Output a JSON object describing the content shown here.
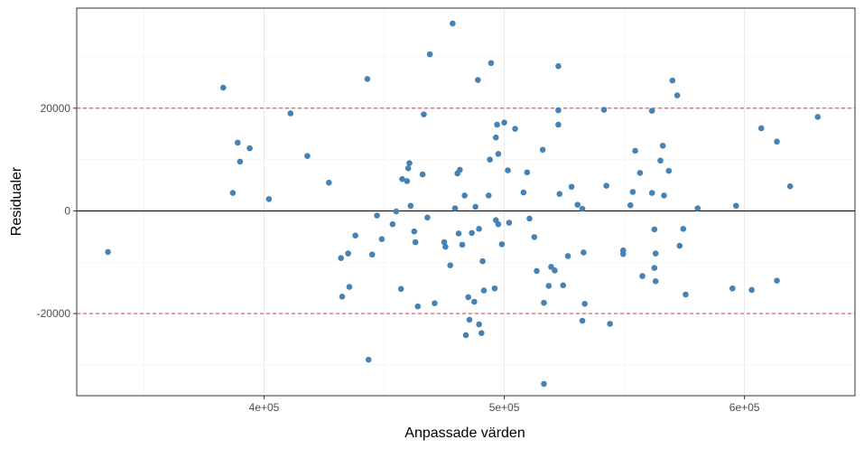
{
  "chart_data": {
    "type": "scatter",
    "title": "",
    "xlabel": "Anpassade värden",
    "ylabel": "Residualer",
    "xlim": [
      322000,
      646000
    ],
    "ylim": [
      -36000,
      39500
    ],
    "x_ticks": [
      400000,
      500000,
      600000
    ],
    "x_tick_labels": [
      "4e+05",
      "5e+05",
      "6e+05"
    ],
    "y_ticks": [
      -20000,
      0,
      20000
    ],
    "y_tick_labels": [
      "-20000",
      "0",
      "20000"
    ],
    "x_minor_gridlines": [
      350000,
      450000,
      550000
    ],
    "y_minor_gridlines": [
      -30000,
      -10000,
      10000,
      30000
    ],
    "grid": true,
    "legend": "none",
    "reference_lines": [
      {
        "y": 0,
        "style": "solid",
        "color": "#000000"
      },
      {
        "y": 20000,
        "style": "dashed",
        "color": "#e0191f"
      },
      {
        "y": -20000,
        "style": "dashed",
        "color": "#e0191f"
      }
    ],
    "point_color": "#4682b4",
    "points": [
      {
        "x": 335000,
        "y": -8000
      },
      {
        "x": 383000,
        "y": 24000
      },
      {
        "x": 387000,
        "y": 3500
      },
      {
        "x": 389000,
        "y": 13300
      },
      {
        "x": 390000,
        "y": 9600
      },
      {
        "x": 394000,
        "y": 12200
      },
      {
        "x": 402000,
        "y": 2300
      },
      {
        "x": 411000,
        "y": 19000
      },
      {
        "x": 418000,
        "y": 10700
      },
      {
        "x": 427000,
        "y": 5500
      },
      {
        "x": 432000,
        "y": -9200
      },
      {
        "x": 432500,
        "y": -16700
      },
      {
        "x": 435000,
        "y": -8300
      },
      {
        "x": 435500,
        "y": -14800
      },
      {
        "x": 438000,
        "y": -4800
      },
      {
        "x": 443000,
        "y": 25700
      },
      {
        "x": 443500,
        "y": -29000
      },
      {
        "x": 445000,
        "y": -8500
      },
      {
        "x": 447000,
        "y": -900
      },
      {
        "x": 449000,
        "y": -5500
      },
      {
        "x": 453500,
        "y": -2600
      },
      {
        "x": 455000,
        "y": -100
      },
      {
        "x": 457000,
        "y": -15200
      },
      {
        "x": 457500,
        "y": 6200
      },
      {
        "x": 459500,
        "y": 5800
      },
      {
        "x": 460000,
        "y": 8300
      },
      {
        "x": 460500,
        "y": 9300
      },
      {
        "x": 461000,
        "y": 1000
      },
      {
        "x": 462500,
        "y": -4000
      },
      {
        "x": 463000,
        "y": -6100
      },
      {
        "x": 464000,
        "y": -18600
      },
      {
        "x": 466000,
        "y": 7100
      },
      {
        "x": 466500,
        "y": 18800
      },
      {
        "x": 468000,
        "y": -1300
      },
      {
        "x": 469000,
        "y": 30500
      },
      {
        "x": 471000,
        "y": -18000
      },
      {
        "x": 475000,
        "y": -6100
      },
      {
        "x": 475500,
        "y": -7000
      },
      {
        "x": 477500,
        "y": -10600
      },
      {
        "x": 478500,
        "y": 36500
      },
      {
        "x": 479500,
        "y": 500
      },
      {
        "x": 480500,
        "y": 7300
      },
      {
        "x": 481500,
        "y": 8000
      },
      {
        "x": 481000,
        "y": -4400
      },
      {
        "x": 482500,
        "y": -6600
      },
      {
        "x": 483500,
        "y": 3000
      },
      {
        "x": 484000,
        "y": -24200
      },
      {
        "x": 485000,
        "y": -16800
      },
      {
        "x": 485500,
        "y": -21200
      },
      {
        "x": 486500,
        "y": -4300
      },
      {
        "x": 487500,
        "y": -17700
      },
      {
        "x": 488000,
        "y": 800
      },
      {
        "x": 489000,
        "y": 25500
      },
      {
        "x": 489500,
        "y": -3500
      },
      {
        "x": 489500,
        "y": -22100
      },
      {
        "x": 490500,
        "y": -23800
      },
      {
        "x": 491000,
        "y": -9800
      },
      {
        "x": 491500,
        "y": -15500
      },
      {
        "x": 493500,
        "y": 3000
      },
      {
        "x": 494000,
        "y": 10000
      },
      {
        "x": 494500,
        "y": 28800
      },
      {
        "x": 496000,
        "y": -15100
      },
      {
        "x": 496500,
        "y": 14300
      },
      {
        "x": 497000,
        "y": 16800
      },
      {
        "x": 497500,
        "y": 11100
      },
      {
        "x": 496500,
        "y": -1800
      },
      {
        "x": 497500,
        "y": -2600
      },
      {
        "x": 499000,
        "y": -6500
      },
      {
        "x": 500000,
        "y": 17200
      },
      {
        "x": 501500,
        "y": 7900
      },
      {
        "x": 502000,
        "y": -2300
      },
      {
        "x": 504500,
        "y": 16000
      },
      {
        "x": 508000,
        "y": 3600
      },
      {
        "x": 509500,
        "y": 7500
      },
      {
        "x": 510500,
        "y": -1500
      },
      {
        "x": 512500,
        "y": -5100
      },
      {
        "x": 513500,
        "y": -11700
      },
      {
        "x": 516000,
        "y": 11900
      },
      {
        "x": 516500,
        "y": -17900
      },
      {
        "x": 516500,
        "y": -33700
      },
      {
        "x": 518500,
        "y": -14600
      },
      {
        "x": 519500,
        "y": -10900
      },
      {
        "x": 521000,
        "y": -11600
      },
      {
        "x": 522500,
        "y": 28200
      },
      {
        "x": 522500,
        "y": 19600
      },
      {
        "x": 522500,
        "y": 16800
      },
      {
        "x": 523000,
        "y": 3300
      },
      {
        "x": 524500,
        "y": -14500
      },
      {
        "x": 526500,
        "y": -8800
      },
      {
        "x": 528000,
        "y": 4700
      },
      {
        "x": 530500,
        "y": 1200
      },
      {
        "x": 532500,
        "y": 400
      },
      {
        "x": 532500,
        "y": -21400
      },
      {
        "x": 533000,
        "y": -8100
      },
      {
        "x": 533500,
        "y": -18100
      },
      {
        "x": 541500,
        "y": 19700
      },
      {
        "x": 542500,
        "y": 4900
      },
      {
        "x": 544000,
        "y": -22000
      },
      {
        "x": 549500,
        "y": -8400
      },
      {
        "x": 549500,
        "y": -7700
      },
      {
        "x": 552500,
        "y": 1100
      },
      {
        "x": 553500,
        "y": 3700
      },
      {
        "x": 554500,
        "y": 11700
      },
      {
        "x": 556500,
        "y": 7400
      },
      {
        "x": 557500,
        "y": -12700
      },
      {
        "x": 561500,
        "y": 3500
      },
      {
        "x": 561500,
        "y": 19500
      },
      {
        "x": 562500,
        "y": -3600
      },
      {
        "x": 562500,
        "y": -11100
      },
      {
        "x": 563000,
        "y": -8300
      },
      {
        "x": 563000,
        "y": -13700
      },
      {
        "x": 565000,
        "y": 9800
      },
      {
        "x": 566000,
        "y": 12700
      },
      {
        "x": 566500,
        "y": 3000
      },
      {
        "x": 568500,
        "y": 7800
      },
      {
        "x": 570000,
        "y": 25400
      },
      {
        "x": 572000,
        "y": 22500
      },
      {
        "x": 573000,
        "y": -6800
      },
      {
        "x": 574500,
        "y": -3500
      },
      {
        "x": 575500,
        "y": -16300
      },
      {
        "x": 580500,
        "y": 500
      },
      {
        "x": 595000,
        "y": -15100
      },
      {
        "x": 596500,
        "y": 1000
      },
      {
        "x": 603000,
        "y": -15400
      },
      {
        "x": 607000,
        "y": 16100
      },
      {
        "x": 613500,
        "y": 13500
      },
      {
        "x": 613500,
        "y": -13600
      },
      {
        "x": 619000,
        "y": 4800
      },
      {
        "x": 630500,
        "y": 18300
      }
    ]
  }
}
